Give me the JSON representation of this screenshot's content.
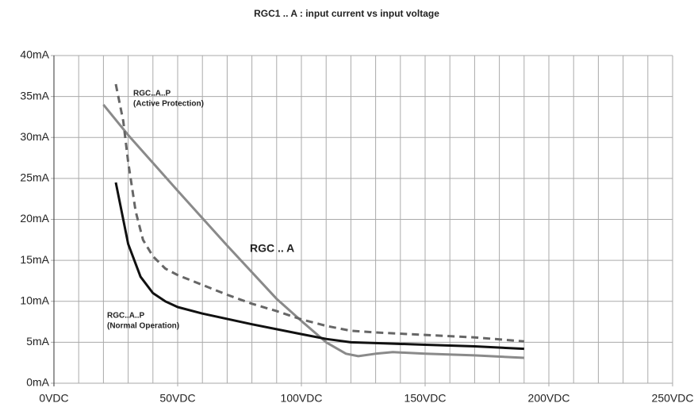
{
  "chart_data": {
    "type": "line",
    "title": "RGC1 .. A : input current vs input voltage",
    "xlim": [
      0,
      250
    ],
    "ylim": [
      0,
      40
    ],
    "xticks": [
      {
        "value": 0,
        "label": "0VDC"
      },
      {
        "value": 50,
        "label": "50VDC"
      },
      {
        "value": 100,
        "label": "100VDC"
      },
      {
        "value": 150,
        "label": "150VDC"
      },
      {
        "value": 200,
        "label": "200VDC"
      },
      {
        "value": 250,
        "label": "250VDC"
      }
    ],
    "xminorticks": [
      10,
      20,
      30,
      40,
      60,
      70,
      80,
      90,
      110,
      120,
      130,
      140,
      160,
      170,
      180,
      190,
      210,
      220,
      230,
      240
    ],
    "yticks": [
      {
        "value": 0,
        "label": "0mA"
      },
      {
        "value": 5,
        "label": "5mA"
      },
      {
        "value": 10,
        "label": "10mA"
      },
      {
        "value": 15,
        "label": "15mA"
      },
      {
        "value": 20,
        "label": "20mA"
      },
      {
        "value": 25,
        "label": "25mA"
      },
      {
        "value": 30,
        "label": "30mA"
      },
      {
        "value": 35,
        "label": "35mA"
      },
      {
        "value": 40,
        "label": "40mA"
      }
    ],
    "grid": true,
    "series": [
      {
        "color": "#8a8a8a",
        "dash": false,
        "x": [
          20,
          30,
          50,
          70,
          90,
          100,
          110,
          118,
          123,
          130,
          137,
          150,
          170,
          190
        ],
        "values": [
          34,
          30.3,
          23.5,
          16.8,
          10.3,
          7.6,
          5,
          3.6,
          3.3,
          3.6,
          3.8,
          3.6,
          3.4,
          3.1
        ]
      },
      {
        "color": "#111111",
        "dash": false,
        "x": [
          25,
          30,
          35,
          40,
          45,
          50,
          60,
          80,
          100,
          110,
          120,
          130,
          150,
          170,
          190
        ],
        "values": [
          24.5,
          17,
          13,
          11,
          10,
          9.3,
          8.5,
          7.2,
          6,
          5.4,
          5,
          4.9,
          4.7,
          4.5,
          4.2
        ]
      },
      {
        "color": "#666666",
        "dash": true,
        "x": [
          25,
          28,
          30,
          33,
          36,
          40,
          45,
          50,
          60,
          70,
          80,
          90,
          100,
          110,
          120,
          130,
          150,
          170,
          190
        ],
        "values": [
          36.5,
          32,
          27,
          21,
          17.5,
          15.5,
          14,
          13.2,
          12,
          10.8,
          9.7,
          8.8,
          7.8,
          7,
          6.4,
          6.2,
          5.9,
          5.6,
          5.1
        ]
      }
    ],
    "annotations": [
      {
        "lines": [
          "RGC..A..P",
          "(Active Protection)"
        ]
      },
      {
        "lines": [
          "RGC .. A"
        ]
      },
      {
        "lines": [
          "RGC..A..P",
          "(Normal Operation)"
        ]
      }
    ]
  }
}
